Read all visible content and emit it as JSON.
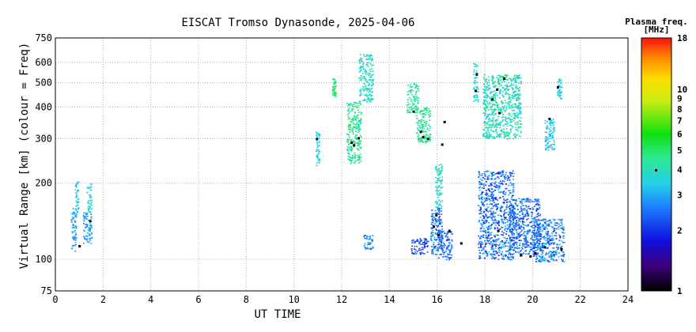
{
  "chart_data": {
    "type": "scatter",
    "title": "EISCAT Tromso Dynasonde, 2025-04-06",
    "xlabel": "UT TIME",
    "ylabel": "Virtual Range [km] (colour = Freq)",
    "xlim": [
      0,
      24
    ],
    "ylim": [
      75,
      750
    ],
    "yscale": "log",
    "xticks": [
      "0",
      "2",
      "4",
      "6",
      "8",
      "10",
      "12",
      "14",
      "16",
      "18",
      "20",
      "22",
      "24"
    ],
    "yticks": [
      {
        "value": 75,
        "label": "75"
      },
      {
        "value": 100,
        "label": "100"
      },
      {
        "value": 200,
        "label": "200"
      },
      {
        "value": 300,
        "label": "300"
      },
      {
        "value": 400,
        "label": "400"
      },
      {
        "value": 500,
        "label": "500"
      },
      {
        "value": 600,
        "label": "600"
      },
      {
        "value": 750,
        "label": "750"
      }
    ],
    "grid": true,
    "colorbar": {
      "title": "Plasma freq.",
      "unit": "[MHz]",
      "scale": "log",
      "min": 1,
      "max": 18,
      "ticks": [
        {
          "value": 18,
          "label": "18"
        },
        {
          "value": 10,
          "label": "10"
        },
        {
          "value": 9,
          "label": "9"
        },
        {
          "value": 8,
          "label": "8"
        },
        {
          "value": 7,
          "label": "7"
        },
        {
          "value": 6,
          "label": "6"
        },
        {
          "value": 5,
          "label": "5"
        },
        {
          "value": 4,
          "label": "4"
        },
        {
          "value": 3,
          "label": "3"
        },
        {
          "value": 2,
          "label": "2"
        },
        {
          "value": 1,
          "label": "1"
        }
      ]
    },
    "clusters": [
      {
        "x": [
          0.65,
          0.85
        ],
        "y": [
          108,
          160
        ],
        "f": [
          2.5,
          3.2
        ]
      },
      {
        "x": [
          0.8,
          0.95
        ],
        "y": [
          150,
          205
        ],
        "f": [
          3.0,
          3.5
        ]
      },
      {
        "x": [
          1.15,
          1.5
        ],
        "y": [
          115,
          155
        ],
        "f": [
          2.5,
          3.3
        ]
      },
      {
        "x": [
          1.3,
          1.5
        ],
        "y": [
          155,
          200
        ],
        "f": [
          3.2,
          4.0
        ]
      },
      {
        "x": [
          10.9,
          11.05
        ],
        "y": [
          230,
          320
        ],
        "f": [
          3.2,
          3.6
        ]
      },
      {
        "x": [
          11.6,
          11.75
        ],
        "y": [
          440,
          520
        ],
        "f": [
          4.5,
          5.5
        ]
      },
      {
        "x": [
          12.2,
          12.8
        ],
        "y": [
          240,
          420
        ],
        "f": [
          3.5,
          5.5
        ]
      },
      {
        "x": [
          12.7,
          13.3
        ],
        "y": [
          420,
          650
        ],
        "f": [
          3.3,
          4.5
        ]
      },
      {
        "x": [
          12.9,
          13.3
        ],
        "y": [
          110,
          125
        ],
        "f": [
          2.3,
          3.0
        ]
      },
      {
        "x": [
          14.7,
          15.2
        ],
        "y": [
          380,
          500
        ],
        "f": [
          3.8,
          5.0
        ]
      },
      {
        "x": [
          15.1,
          15.7
        ],
        "y": [
          290,
          400
        ],
        "f": [
          3.5,
          5.5
        ]
      },
      {
        "x": [
          14.9,
          15.6
        ],
        "y": [
          105,
          122
        ],
        "f": [
          1.8,
          2.6
        ]
      },
      {
        "x": [
          15.7,
          16.2
        ],
        "y": [
          105,
          160
        ],
        "f": [
          2.0,
          3.2
        ]
      },
      {
        "x": [
          15.9,
          16.2
        ],
        "y": [
          160,
          240
        ],
        "f": [
          3.2,
          4.5
        ]
      },
      {
        "x": [
          16.0,
          16.6
        ],
        "y": [
          100,
          130
        ],
        "f": [
          2.0,
          2.8
        ]
      },
      {
        "x": [
          17.5,
          17.7
        ],
        "y": [
          420,
          600
        ],
        "f": [
          3.2,
          4.5
        ]
      },
      {
        "x": [
          17.9,
          19.5
        ],
        "y": [
          300,
          540
        ],
        "f": [
          3.0,
          5.0
        ]
      },
      {
        "x": [
          17.7,
          19.2
        ],
        "y": [
          100,
          225
        ],
        "f": [
          1.7,
          3.3
        ]
      },
      {
        "x": [
          19.0,
          20.3
        ],
        "y": [
          105,
          175
        ],
        "f": [
          1.8,
          3.2
        ]
      },
      {
        "x": [
          20.0,
          21.3
        ],
        "y": [
          98,
          145
        ],
        "f": [
          1.8,
          3.5
        ]
      },
      {
        "x": [
          20.5,
          20.9
        ],
        "y": [
          270,
          360
        ],
        "f": [
          3.0,
          3.5
        ]
      },
      {
        "x": [
          21.0,
          21.2
        ],
        "y": [
          430,
          520
        ],
        "f": [
          3.3,
          3.8
        ]
      }
    ],
    "dark_points": [
      {
        "x": 1.0,
        "y": 113
      },
      {
        "x": 1.45,
        "y": 142
      },
      {
        "x": 10.95,
        "y": 300
      },
      {
        "x": 12.4,
        "y": 290
      },
      {
        "x": 12.5,
        "y": 283
      },
      {
        "x": 12.7,
        "y": 302
      },
      {
        "x": 15.0,
        "y": 385
      },
      {
        "x": 15.3,
        "y": 320
      },
      {
        "x": 15.4,
        "y": 305
      },
      {
        "x": 15.6,
        "y": 300
      },
      {
        "x": 15.85,
        "y": 135
      },
      {
        "x": 15.95,
        "y": 150
      },
      {
        "x": 16.05,
        "y": 125
      },
      {
        "x": 16.2,
        "y": 285
      },
      {
        "x": 16.3,
        "y": 350
      },
      {
        "x": 16.5,
        "y": 130
      },
      {
        "x": 17.0,
        "y": 116
      },
      {
        "x": 17.6,
        "y": 465
      },
      {
        "x": 17.65,
        "y": 540
      },
      {
        "x": 18.3,
        "y": 430
      },
      {
        "x": 18.5,
        "y": 470
      },
      {
        "x": 18.6,
        "y": 380
      },
      {
        "x": 18.55,
        "y": 130
      },
      {
        "x": 18.8,
        "y": 520
      },
      {
        "x": 19.5,
        "y": 104
      },
      {
        "x": 19.9,
        "y": 103
      },
      {
        "x": 20.1,
        "y": 106
      },
      {
        "x": 20.5,
        "y": 112
      },
      {
        "x": 20.7,
        "y": 360
      },
      {
        "x": 21.05,
        "y": 480
      },
      {
        "x": 21.2,
        "y": 110
      }
    ]
  }
}
